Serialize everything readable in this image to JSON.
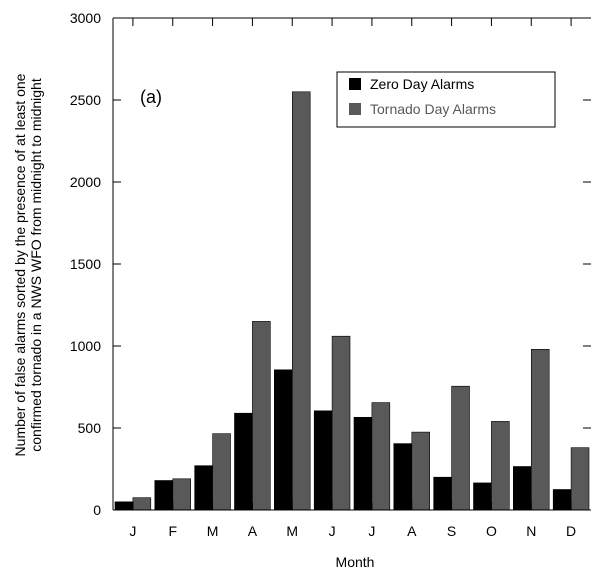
{
  "chart_data": {
    "type": "bar",
    "panel_label": "(a)",
    "categories": [
      "J",
      "F",
      "M",
      "A",
      "M",
      "J",
      "J",
      "A",
      "S",
      "O",
      "N",
      "D"
    ],
    "series": [
      {
        "name": "Zero Day Alarms",
        "color": "#000000",
        "values": [
          50,
          180,
          270,
          590,
          855,
          605,
          565,
          405,
          200,
          165,
          265,
          125
        ]
      },
      {
        "name": "Tornado Day Alarms",
        "color": "#595959",
        "values": [
          75,
          190,
          465,
          1150,
          2550,
          1060,
          655,
          475,
          755,
          540,
          980,
          380
        ]
      }
    ],
    "xlabel": "Month",
    "ylabel_lines": [
      "Number of false alarms sorted by the presence of at least one",
      "confirmed tornado in a NWS WFO from midnight to midnight"
    ],
    "ylim": [
      0,
      3000
    ],
    "yticks": [
      0,
      500,
      1000,
      1500,
      2000,
      2500,
      3000
    ],
    "grid": false,
    "legend_position": "top-right"
  }
}
